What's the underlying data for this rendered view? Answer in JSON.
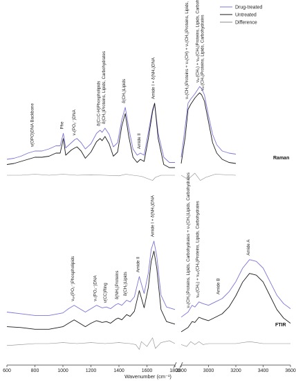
{
  "chart_data": {
    "type": "line",
    "xlabel": "Wavenumber (cm⁻¹)",
    "x_axis": {
      "segments": [
        [
          600,
          1800
        ],
        [
          2800,
          3600
        ]
      ],
      "ticks_left": [
        600,
        800,
        1000,
        1200,
        1400,
        1600,
        1800
      ],
      "ticks_right": [
        2800,
        3000,
        3200,
        3400,
        3600
      ],
      "break_between": [
        1800,
        2800
      ]
    },
    "legend": {
      "placement": "top-right",
      "entries": [
        {
          "name": "Drug-treated",
          "color": "#7b74d9"
        },
        {
          "name": "Untreated",
          "color": "#1a1a1a"
        },
        {
          "name": "Difference",
          "color": "#8a8a8a"
        }
      ]
    },
    "panels": [
      {
        "label": "Raman",
        "annotations": [
          {
            "text": "ν(OPO)DNA Backbone",
            "x": 789
          },
          {
            "text": "Phe",
            "x": 1003
          },
          {
            "text": "νₛ(PO₂⁻)DNA",
            "x": 1090
          },
          {
            "text": "δ(C=C-H)Phospholipids",
            "x": 1265
          },
          {
            "text": "δ(CH₂)Proteins, Lipids, Carbohydrates",
            "x": 1300
          },
          {
            "text": "δ(CH₂)Lipids",
            "x": 1445
          },
          {
            "text": "Amide II",
            "x": 1553
          },
          {
            "text": "Amide I + δ(NH₂)DNA",
            "x": 1655
          },
          {
            "text": "νₛ(CH₂)Proteins + νₛ(CH) + νₛ(CH₃)Proteins, Lipids, Carbohydrates",
            "x": 2850
          },
          {
            "text": "νₐₛ(CH₂) + νₐₛ(CH₃)Proteins, Lipids, Carbohydrates",
            "x": 2930
          },
          {
            "text": "νₐₛ(CH₃)Proteins, Lipids, Carbohydrates",
            "x": 2965
          }
        ],
        "series": [
          {
            "name": "Drug-treated",
            "x": [
              600,
              650,
              700,
              750,
              800,
              850,
              900,
              950,
              980,
              1003,
              1020,
              1060,
              1085,
              1100,
              1130,
              1160,
              1200,
              1240,
              1265,
              1280,
              1300,
              1330,
              1360,
              1390,
              1420,
              1445,
              1470,
              1500,
              1530,
              1553,
              1580,
              1610,
              1640,
              1655,
              1680,
              1720,
              1760,
              1800,
              2800,
              2830,
              2850,
              2870,
              2900,
              2920,
              2935,
              2950,
              2970,
              3000,
              3030,
              3060,
              3100,
              3150,
              3200
            ],
            "y": [
              0.3,
              0.31,
              0.33,
              0.36,
              0.38,
              0.38,
              0.4,
              0.43,
              0.43,
              0.55,
              0.41,
              0.46,
              0.49,
              0.5,
              0.46,
              0.4,
              0.45,
              0.55,
              0.58,
              0.56,
              0.6,
              0.54,
              0.42,
              0.46,
              0.68,
              0.8,
              0.6,
              0.4,
              0.34,
              0.36,
              0.34,
              0.56,
              0.78,
              0.84,
              0.55,
              0.32,
              0.27,
              0.27,
              0.32,
              0.62,
              0.84,
              0.88,
              0.93,
              0.97,
              1.0,
              0.98,
              0.92,
              0.72,
              0.54,
              0.44,
              0.38,
              0.36,
              0.35
            ]
          },
          {
            "name": "Untreated",
            "x": [
              600,
              650,
              700,
              750,
              800,
              850,
              900,
              950,
              980,
              1003,
              1020,
              1060,
              1085,
              1100,
              1130,
              1160,
              1200,
              1240,
              1265,
              1280,
              1300,
              1330,
              1360,
              1390,
              1420,
              1445,
              1470,
              1500,
              1530,
              1553,
              1580,
              1610,
              1640,
              1655,
              1680,
              1720,
              1760,
              1800,
              2800,
              2830,
              2850,
              2870,
              2900,
              2920,
              2935,
              2950,
              2970,
              3000,
              3030,
              3060,
              3100,
              3150,
              3200
            ],
            "y": [
              0.25,
              0.26,
              0.28,
              0.3,
              0.32,
              0.32,
              0.33,
              0.36,
              0.36,
              0.5,
              0.34,
              0.39,
              0.41,
              0.42,
              0.38,
              0.31,
              0.37,
              0.47,
              0.5,
              0.48,
              0.52,
              0.45,
              0.33,
              0.37,
              0.62,
              0.74,
              0.52,
              0.32,
              0.27,
              0.3,
              0.28,
              0.5,
              0.76,
              0.84,
              0.5,
              0.25,
              0.22,
              0.22,
              0.26,
              0.52,
              0.78,
              0.83,
              0.89,
              0.92,
              0.94,
              0.92,
              0.86,
              0.66,
              0.46,
              0.36,
              0.3,
              0.27,
              0.26
            ]
          },
          {
            "name": "Difference",
            "x": [
              600,
              700,
              800,
              900,
              1000,
              1100,
              1200,
              1300,
              1400,
              1450,
              1500,
              1560,
              1600,
              1640,
              1660,
              1700,
              1800,
              2800,
              2850,
              2900,
              2940,
              2980,
              3050,
              3200
            ],
            "y": [
              0.0,
              0.0,
              0.01,
              0.0,
              0.01,
              0.0,
              0.005,
              0.0,
              -0.005,
              0.01,
              0.0,
              -0.01,
              -0.03,
              -0.05,
              -0.02,
              0.0,
              0.0,
              0.0,
              -0.04,
              0.02,
              -0.05,
              -0.02,
              0.01,
              0.0
            ]
          }
        ]
      },
      {
        "label": "FTIR",
        "annotations": [
          {
            "text": "νₐₛ(PO₂⁻)Phospholipids",
            "x": 1080
          },
          {
            "text": "νₛ(PO₂⁻)DNA",
            "x": 1240
          },
          {
            "text": "ν(CC)Ring",
            "x": 1310
          },
          {
            "text": "δ(NH₂)Proteins",
            "x": 1395
          },
          {
            "text": "δ(CH₂)Lipids",
            "x": 1455
          },
          {
            "text": "Amide II",
            "x": 1545
          },
          {
            "text": "Amide I + δ(NH₂)DNA",
            "x": 1650
          },
          {
            "text": "νₛ(CH₂)Proteins, Lipids, Carbohydrates + νₛ(CH₃)Lipids, Carbohydrates",
            "x": 2860
          },
          {
            "text": "νₐₛ(CH₂) + νₐₛ(CH₃)Proteins, Lipids, Carbohydrates",
            "x": 2930
          },
          {
            "text": "Amide B",
            "x": 3080
          },
          {
            "text": "Amide A",
            "x": 3300
          }
        ],
        "series": [
          {
            "name": "Drug-treated",
            "x": [
              600,
              700,
              800,
              900,
              1000,
              1040,
              1080,
              1120,
              1160,
              1200,
              1240,
              1280,
              1310,
              1340,
              1380,
              1395,
              1420,
              1455,
              1480,
              1510,
              1545,
              1580,
              1610,
              1630,
              1650,
              1670,
              1700,
              1740,
              1800,
              2800,
              2850,
              2880,
              2900,
              2930,
              2960,
              3000,
              3050,
              3100,
              3150,
              3200,
              3250,
              3300,
              3350,
              3400,
              3450,
              3500,
              3550,
              3600
            ],
            "y": [
              0.16,
              0.14,
              0.12,
              0.12,
              0.15,
              0.2,
              0.24,
              0.2,
              0.16,
              0.2,
              0.24,
              0.21,
              0.22,
              0.2,
              0.25,
              0.26,
              0.24,
              0.3,
              0.28,
              0.34,
              0.58,
              0.38,
              0.62,
              0.9,
              1.0,
              0.82,
              0.36,
              0.22,
              0.19,
              0.1,
              0.16,
              0.24,
              0.22,
              0.28,
              0.26,
              0.24,
              0.28,
              0.32,
              0.4,
              0.52,
              0.68,
              0.78,
              0.76,
              0.68,
              0.52,
              0.36,
              0.26,
              0.2
            ]
          },
          {
            "name": "Untreated",
            "x": [
              600,
              700,
              800,
              900,
              1000,
              1040,
              1080,
              1120,
              1160,
              1200,
              1240,
              1280,
              1310,
              1340,
              1380,
              1395,
              1420,
              1455,
              1480,
              1510,
              1545,
              1580,
              1610,
              1630,
              1650,
              1670,
              1700,
              1740,
              1800,
              2800,
              2850,
              2880,
              2900,
              2930,
              2960,
              3000,
              3050,
              3100,
              3150,
              3200,
              3250,
              3300,
              3350,
              3400,
              3450,
              3500,
              3550,
              3600
            ],
            "y": [
              0.1,
              0.09,
              0.07,
              0.07,
              0.1,
              0.14,
              0.18,
              0.14,
              0.1,
              0.14,
              0.17,
              0.15,
              0.16,
              0.14,
              0.19,
              0.2,
              0.18,
              0.24,
              0.22,
              0.28,
              0.52,
              0.32,
              0.56,
              0.86,
              0.98,
              0.78,
              0.3,
              0.16,
              0.13,
              0.04,
              0.09,
              0.16,
              0.15,
              0.21,
              0.19,
              0.17,
              0.21,
              0.25,
              0.33,
              0.46,
              0.62,
              0.72,
              0.7,
              0.62,
              0.46,
              0.3,
              0.2,
              0.14
            ]
          },
          {
            "name": "Difference",
            "x": [
              600,
              700,
              800,
              900,
              1000,
              1100,
              1200,
              1300,
              1400,
              1480,
              1520,
              1545,
              1560,
              1600,
              1640,
              1660,
              1700,
              1760,
              1800,
              2800,
              2840,
              2870,
              2900,
              2930,
              2960,
              3000,
              3100,
              3200,
              3300,
              3350,
              3400,
              3500,
              3600
            ],
            "y": [
              -0.02,
              -0.01,
              0.0,
              0.0,
              0.01,
              0.0,
              0.01,
              0.0,
              0.01,
              0.0,
              -0.01,
              -0.06,
              0.02,
              -0.03,
              0.06,
              -0.05,
              0.01,
              0.03,
              0.0,
              -0.01,
              -0.03,
              0.02,
              -0.01,
              0.02,
              -0.01,
              0.0,
              0.0,
              0.0,
              0.02,
              0.01,
              0.0,
              0.0,
              0.0
            ]
          }
        ]
      }
    ]
  }
}
